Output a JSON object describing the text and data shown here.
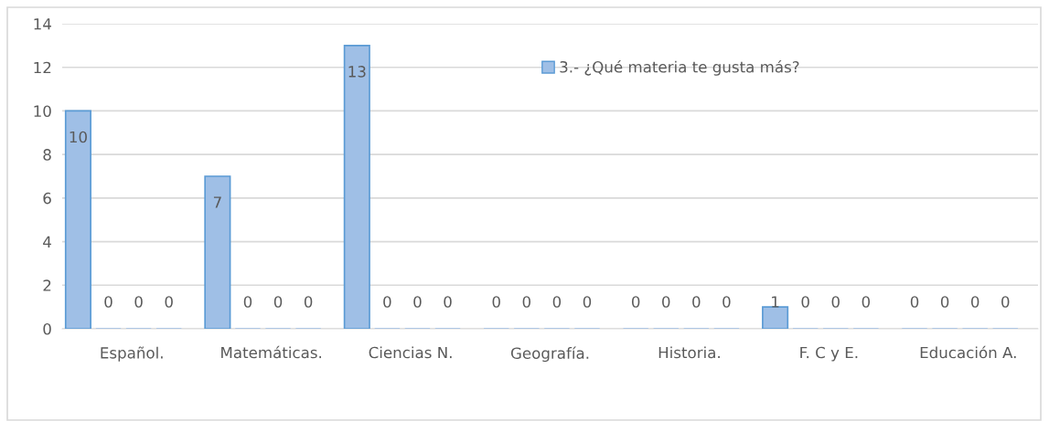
{
  "chart_data": {
    "type": "bar",
    "categories": [
      "Español.",
      "Matemáticas.",
      "Ciencias N.",
      "Geografía.",
      "Historia.",
      "F. C y E.",
      "Educación A."
    ],
    "series": [
      {
        "name": "3.- ¿Qué materia te gusta más?",
        "color": "#9fbfe6",
        "values": [
          10,
          7,
          13,
          0,
          0,
          1,
          0
        ]
      },
      {
        "color": "#9fbfe6",
        "values": [
          0,
          0,
          0,
          0,
          0,
          0,
          0
        ]
      },
      {
        "color": "#9fbfe6",
        "values": [
          0,
          0,
          0,
          0,
          0,
          0,
          0
        ]
      },
      {
        "color": "#9fbfe6",
        "values": [
          0,
          0,
          0,
          0,
          0,
          0,
          0
        ]
      }
    ],
    "ylim": [
      0,
      14
    ],
    "yticks": [
      0,
      2,
      4,
      6,
      8,
      10,
      12,
      14
    ],
    "grid": "y",
    "legend": "top right",
    "data_labels": true
  }
}
